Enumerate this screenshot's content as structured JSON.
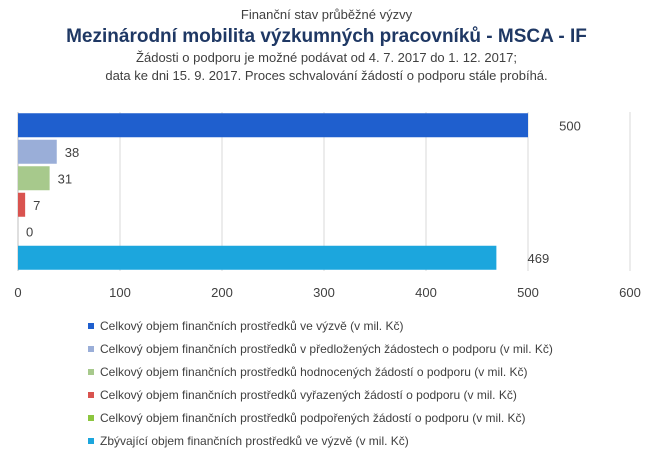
{
  "header": {
    "supertitle": "Finanční stav průběžné výzvy",
    "title": "Mezinárodní mobilita výzkumných pracovníků - MSCA - IF",
    "subtitle_line1": "Žádosti o podporu je možné podávat od 4. 7. 2017 do 1. 12. 2017;",
    "subtitle_line2": "data ke dni 15. 9. 2017. Proces schvalování žádostí o podporu stále probíhá."
  },
  "chart_data": {
    "type": "bar",
    "orientation": "horizontal",
    "title": "Mezinárodní mobilita výzkumných pracovníků - MSCA - IF",
    "xlabel": "",
    "ylabel": "",
    "xlim": [
      0,
      600
    ],
    "x_ticks": [
      "0",
      "100",
      "200",
      "300",
      "400",
      "500",
      "600"
    ],
    "grid": true,
    "legend_position": "bottom",
    "series": [
      {
        "name": "Celkový objem finančních prostředků ve výzvě (v mil. Kč)",
        "value": 500,
        "color": "#1f5fce"
      },
      {
        "name": "Celkový objem finančních prostředků v předložených žádostech o podporu (v mil. Kč)",
        "value": 38,
        "color": "#9aaed8"
      },
      {
        "name": "Celkový objem finančních prostředků hodnocených žádostí o podporu (v mil. Kč)",
        "value": 31,
        "color": "#a7c98c"
      },
      {
        "name": "Celkový objem finančních prostředků vyřazených žádostí o podporu (v mil. Kč)",
        "value": 7,
        "color": "#d9534f"
      },
      {
        "name": "Celkový objem finančních prostředků podpořených žádostí o podporu (v mil. Kč)",
        "value": 0,
        "color": "#8cc63f"
      },
      {
        "name": "Zbývající objem finančních prostředků ve výzvě (v mil. Kč)",
        "value": 469,
        "color": "#1ca6dd"
      }
    ]
  }
}
